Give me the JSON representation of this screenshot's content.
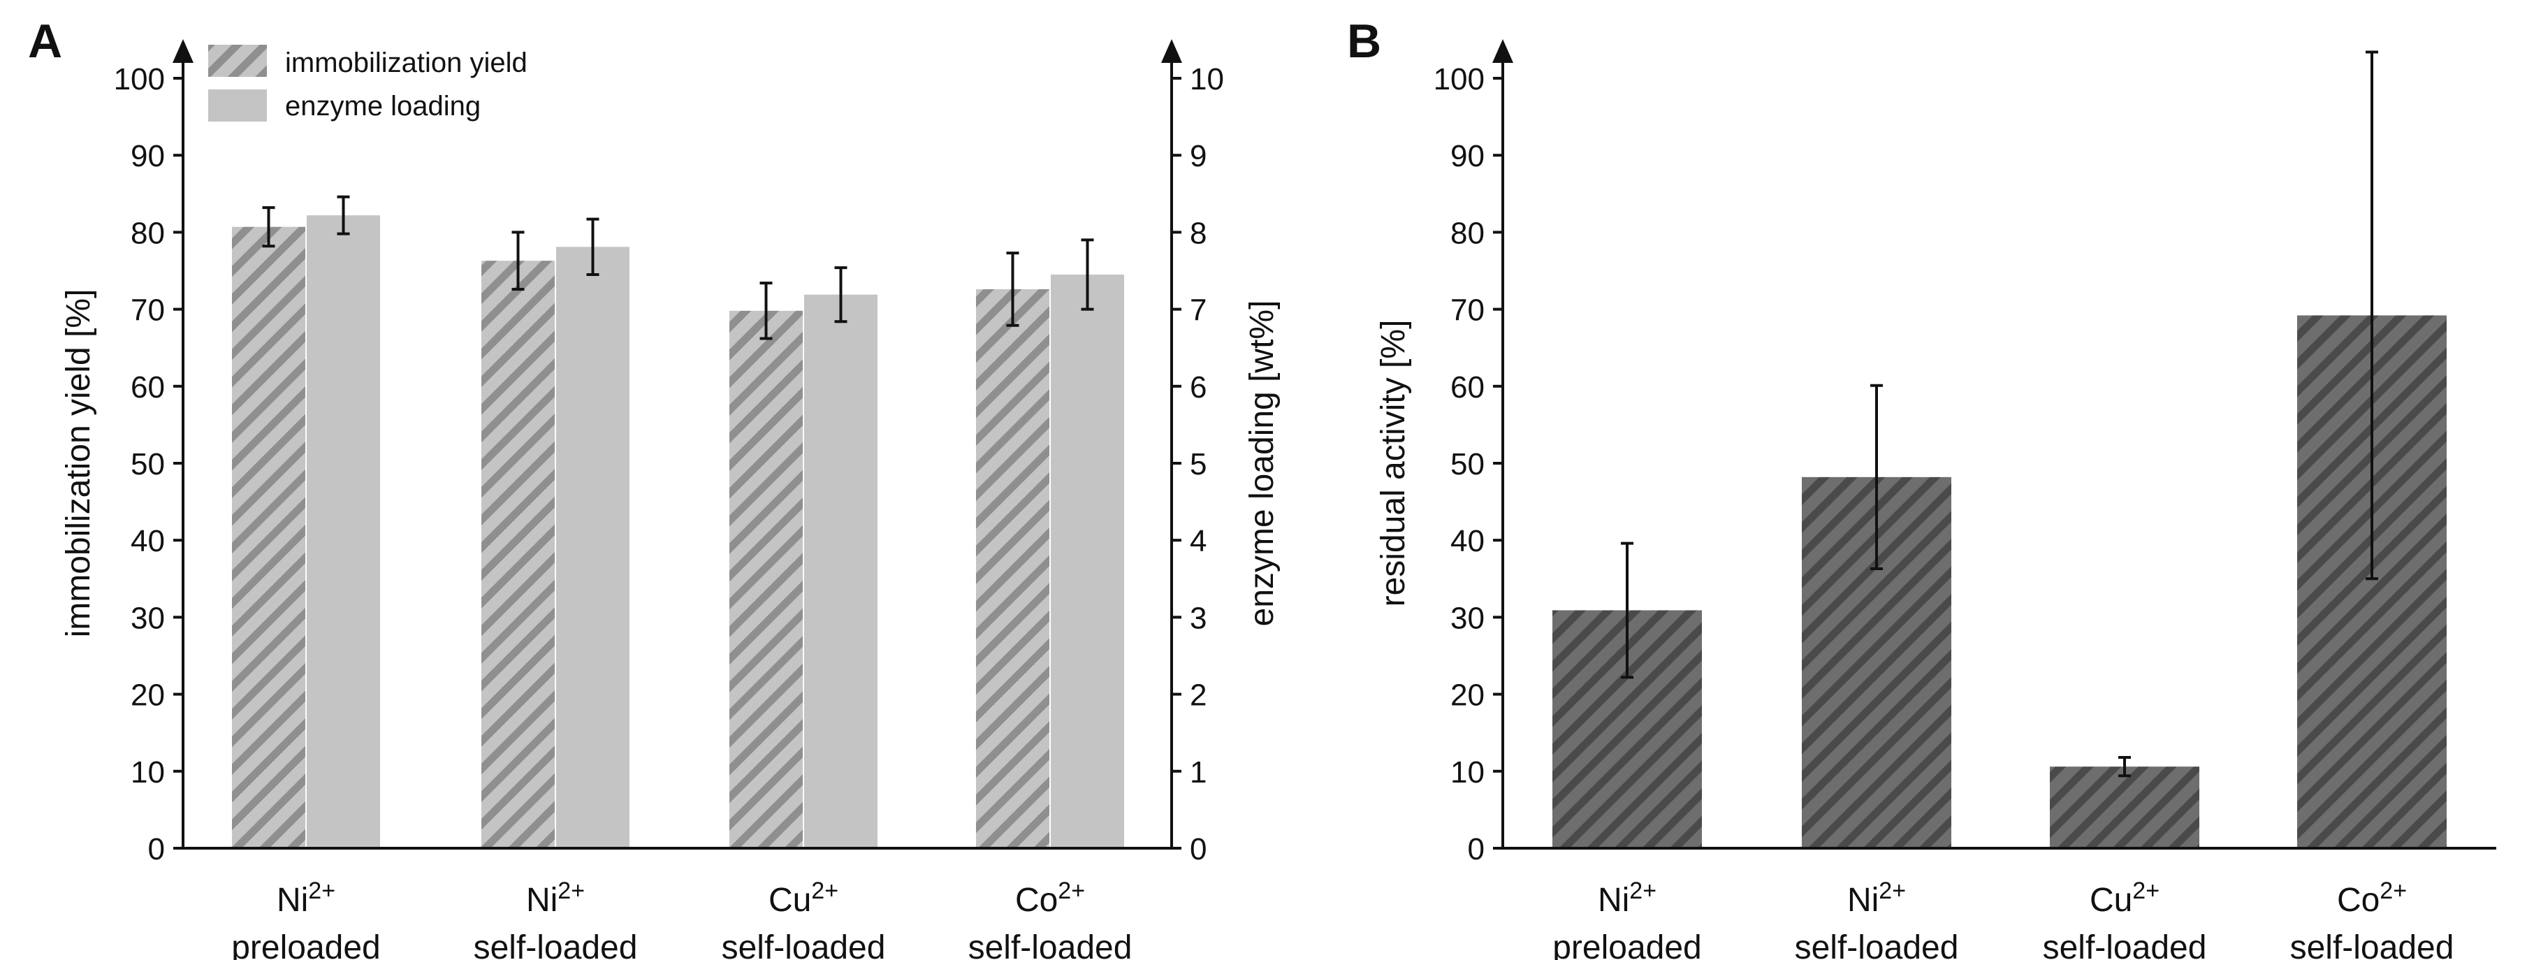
{
  "chart_data": [
    {
      "panel": "A",
      "type": "bar",
      "categories": [
        {
          "ion": "Ni",
          "charge": "2+",
          "method": "preloaded"
        },
        {
          "ion": "Ni",
          "charge": "2+",
          "method": "self-loaded"
        },
        {
          "ion": "Cu",
          "charge": "2+",
          "method": "self-loaded"
        },
        {
          "ion": "Co",
          "charge": "2+",
          "method": "self-loaded"
        }
      ],
      "series": [
        {
          "name": "immobilization yield",
          "axis": "left",
          "pattern": "hatched",
          "values": [
            80.7,
            76.3,
            69.8,
            72.6
          ],
          "errors": [
            2.5,
            3.7,
            3.6,
            4.7
          ]
        },
        {
          "name": "enzyme loading",
          "axis": "right",
          "pattern": "solid",
          "values": [
            8.22,
            7.81,
            7.19,
            7.45
          ],
          "errors": [
            0.24,
            0.36,
            0.35,
            0.45
          ]
        }
      ],
      "ylabel": "immobilization yield [%]",
      "ylabel_right": "enzyme loading [wt%]",
      "ylim": [
        0,
        100
      ],
      "ylim_right": [
        0,
        10
      ],
      "yticks": [
        0,
        10,
        20,
        30,
        40,
        50,
        60,
        70,
        80,
        90,
        100
      ],
      "yticks_right": [
        0,
        1,
        2,
        3,
        4,
        5,
        6,
        7,
        8,
        9,
        10
      ],
      "legend_position": "top-left"
    },
    {
      "panel": "B",
      "type": "bar",
      "categories": [
        {
          "ion": "Ni",
          "charge": "2+",
          "method": "preloaded"
        },
        {
          "ion": "Ni",
          "charge": "2+",
          "method": "self-loaded"
        },
        {
          "ion": "Cu",
          "charge": "2+",
          "method": "self-loaded"
        },
        {
          "ion": "Co",
          "charge": "2+",
          "method": "self-loaded"
        }
      ],
      "series": [
        {
          "name": "residual activity",
          "pattern": "hatched-dark",
          "values": [
            30.9,
            48.2,
            10.6,
            69.2
          ],
          "errors": [
            8.7,
            11.9,
            1.2,
            34.2
          ]
        }
      ],
      "ylabel": "residual activity [%]",
      "ylim": [
        0,
        100
      ],
      "yticks": [
        0,
        10,
        20,
        30,
        40,
        50,
        60,
        70,
        80,
        90,
        100
      ]
    }
  ],
  "colors": {
    "axis": "#111111",
    "hatched_bar_fill": "#c4c4c4",
    "hatched_bar_stripe": "#8f8f8f",
    "solid_bar": "#c4c4c4",
    "dark_bar_fill": "#6e6e6e",
    "dark_bar_stripe": "#4a4a4a",
    "error_bar": "#111111"
  }
}
